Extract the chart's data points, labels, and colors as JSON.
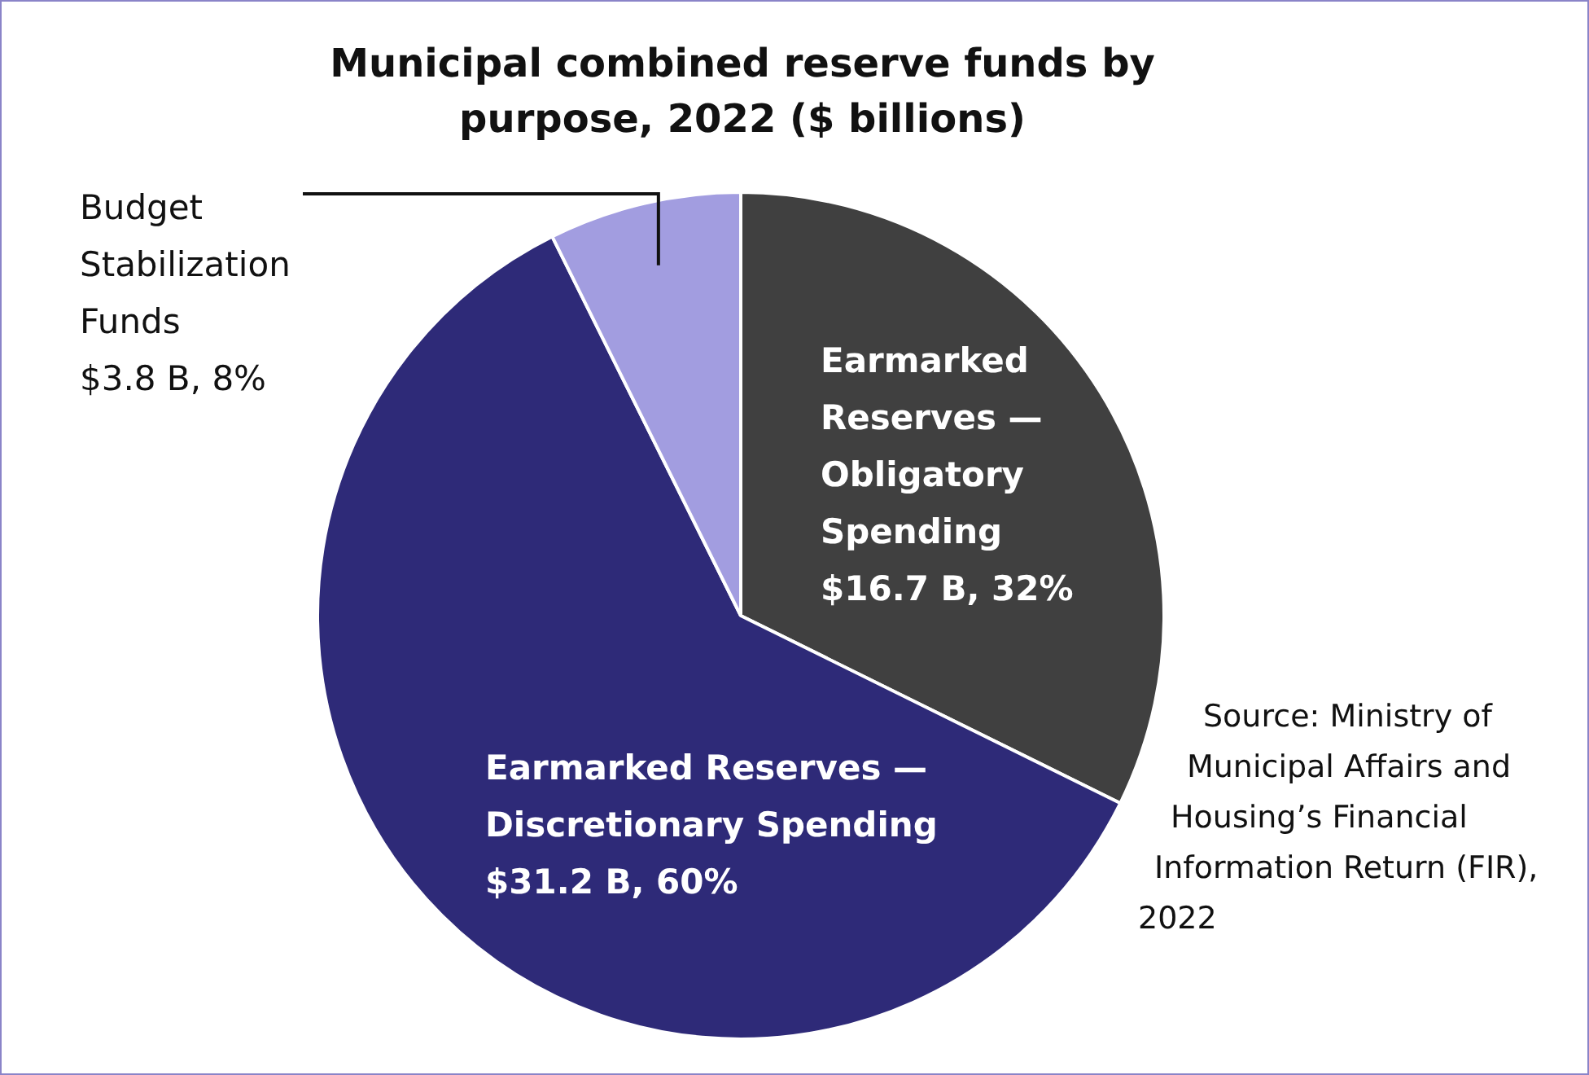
{
  "chart_data": {
    "type": "pie",
    "title": "Municipal combined reserve funds by purpose, 2022 ($ billions)",
    "categories": [
      "Earmarked Reserves — Obligatory Spending",
      "Earmarked Reserves — Discretionary Spending",
      "Budget Stabilization Funds"
    ],
    "values": [
      16.7,
      31.2,
      3.8
    ],
    "colors": [
      "#404040",
      "#2e2a78",
      "#a29de0"
    ],
    "value_labels": [
      "$16.7 B, 32%",
      "$31.2 B, 60%",
      "$3.8 B, 8%"
    ],
    "legend": false,
    "annotations": [
      "Source: Ministry of Municipal Affairs and Housing’s Financial Information Return (FIR), 2022"
    ]
  }
}
